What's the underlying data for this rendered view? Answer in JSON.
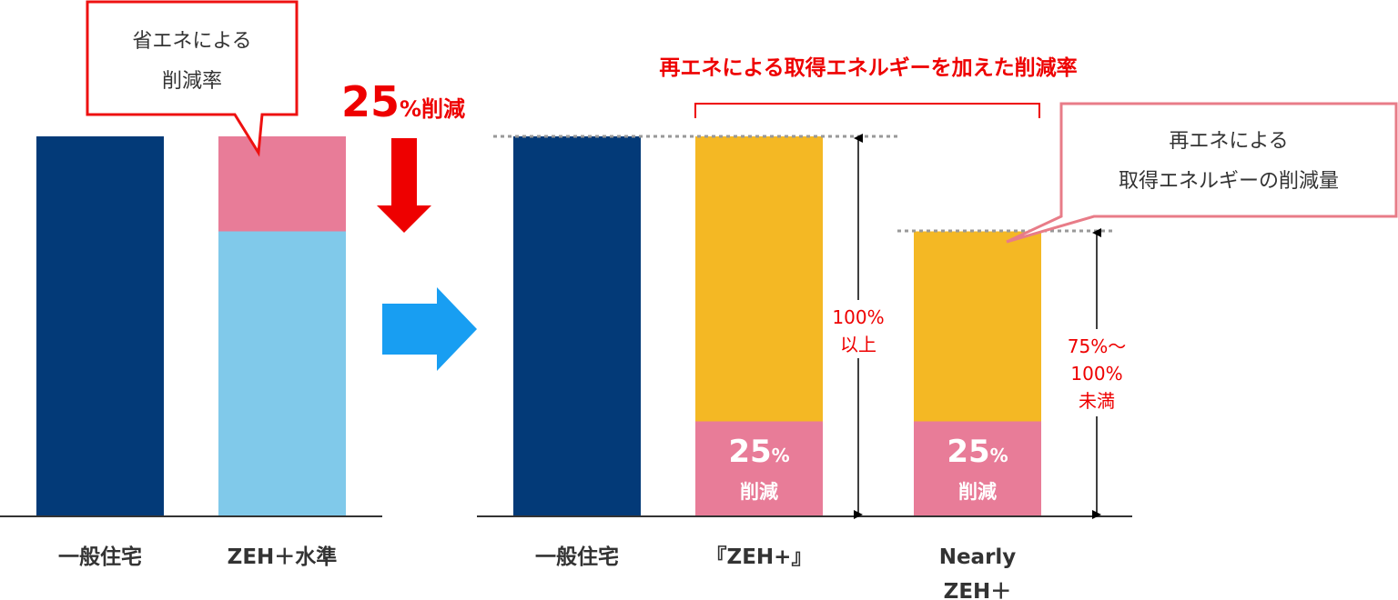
{
  "colors": {
    "navy": "#033a78",
    "pink": "#e87c98",
    "lightblue": "#80c9ea",
    "gold": "#f4b824",
    "red": "#ee0000",
    "arrow_blue": "#189ef2",
    "callout_red": "#ee1111",
    "callout_pink": "#e87c88",
    "text": "#333333",
    "grid": "#999999"
  },
  "chart_data": [
    {
      "type": "bar",
      "stacked": true,
      "categories": [
        "一般住宅",
        "ZEH＋水準"
      ],
      "series": [
        {
          "key": "base",
          "values": [
            100,
            75
          ]
        },
        {
          "key": "reduction",
          "values": [
            0,
            25
          ]
        }
      ],
      "ylim": [
        0,
        100
      ],
      "callout": [
        "省エネによる",
        "削減率"
      ],
      "reduction_label": {
        "number": "25",
        "suffix": "%削減"
      }
    },
    {
      "type": "bar",
      "stacked": true,
      "categories": [
        "一般住宅",
        "『ZEH+』",
        "Nearly\nZEH＋"
      ],
      "series": [
        {
          "key": "base",
          "values": [
            100,
            0,
            0
          ]
        },
        {
          "key": "reduction",
          "values": [
            0,
            25,
            25
          ]
        },
        {
          "key": "renewable",
          "values": [
            0,
            75,
            50
          ]
        }
      ],
      "ylim": [
        0,
        100
      ],
      "bar_labels": [
        {
          "number": "25",
          "unit": "%",
          "text": "削減"
        },
        {
          "number": "25",
          "unit": "%",
          "text": "削減"
        }
      ],
      "bracket_title": "再エネによる取得エネルギーを加えた削減率",
      "range_labels": [
        [
          "100%",
          "以上"
        ],
        [
          "75%～",
          "100%",
          "未満"
        ]
      ],
      "callout": [
        "再エネによる",
        "取得エネルギーの削減量"
      ]
    }
  ]
}
